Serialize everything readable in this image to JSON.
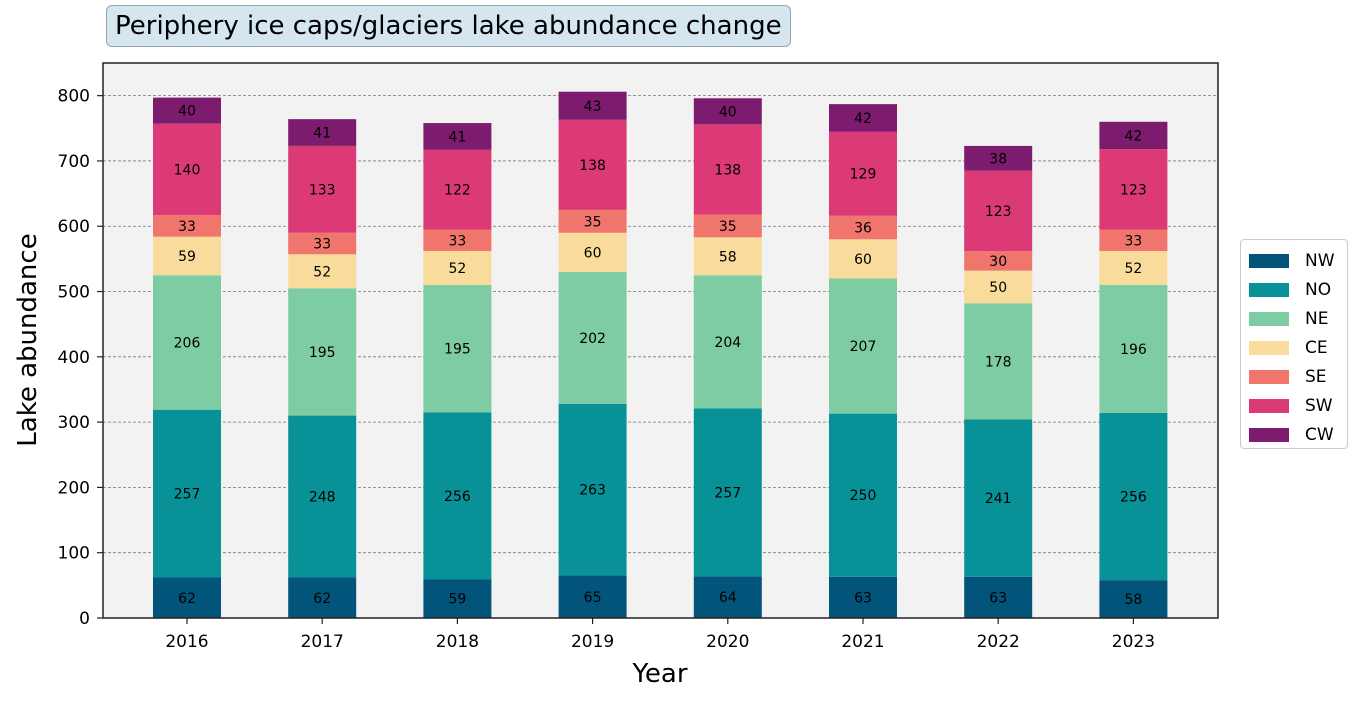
{
  "chart_data": {
    "type": "bar",
    "stacked": true,
    "title": "Periphery ice caps/glaciers lake abundance change",
    "xlabel": "Year",
    "ylabel": "Lake abundance",
    "ylim": [
      0,
      850
    ],
    "yticks": [
      0,
      100,
      200,
      300,
      400,
      500,
      600,
      700,
      800
    ],
    "grid": "horizontal dashed",
    "legend_position": "right",
    "categories": [
      "2016",
      "2017",
      "2018",
      "2019",
      "2020",
      "2021",
      "2022",
      "2023"
    ],
    "series": [
      {
        "name": "NW",
        "color": "#03547a",
        "values": [
          62,
          62,
          59,
          65,
          64,
          63,
          63,
          58
        ]
      },
      {
        "name": "NO",
        "color": "#089197",
        "values": [
          257,
          248,
          256,
          263,
          257,
          250,
          241,
          256
        ]
      },
      {
        "name": "NE",
        "color": "#7ecca3",
        "values": [
          206,
          195,
          195,
          202,
          204,
          207,
          178,
          196
        ]
      },
      {
        "name": "CE",
        "color": "#f9dc9b",
        "values": [
          59,
          52,
          52,
          60,
          58,
          60,
          50,
          52
        ]
      },
      {
        "name": "SE",
        "color": "#f0766d",
        "values": [
          33,
          33,
          33,
          35,
          35,
          36,
          30,
          33
        ]
      },
      {
        "name": "SW",
        "color": "#dc3a76",
        "values": [
          140,
          133,
          122,
          138,
          138,
          129,
          123,
          123
        ]
      },
      {
        "name": "CW",
        "color": "#7d1c6e",
        "values": [
          40,
          41,
          41,
          43,
          40,
          42,
          38,
          42
        ]
      }
    ]
  }
}
